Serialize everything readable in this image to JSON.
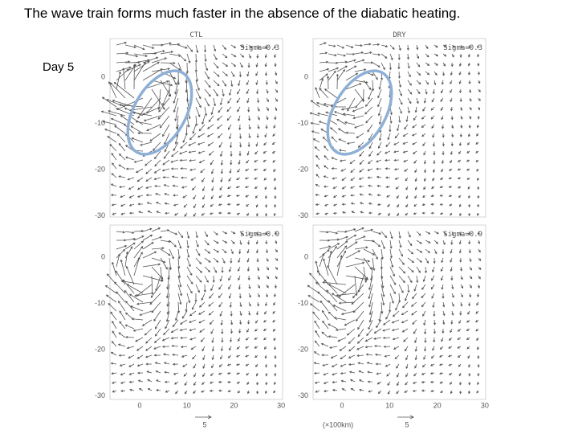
{
  "slide": {
    "title": "The wave train forms much faster in the absence of the diabatic heating.",
    "day_label": "Day 5"
  },
  "figure": {
    "panels": [
      {
        "header": "CTL",
        "sigma": "Sigma=0.3"
      },
      {
        "header": "DRY",
        "sigma": "Sigma=0.3"
      },
      {
        "sigma": "Sigma=0.9"
      },
      {
        "sigma": "Sigma=0.9"
      }
    ],
    "yticks": [
      "0",
      "-10",
      "-20",
      "-30"
    ],
    "xticks": [
      "0",
      "10",
      "20",
      "30"
    ],
    "xlabel": "(×100km)",
    "reference_vector": "5"
  }
}
